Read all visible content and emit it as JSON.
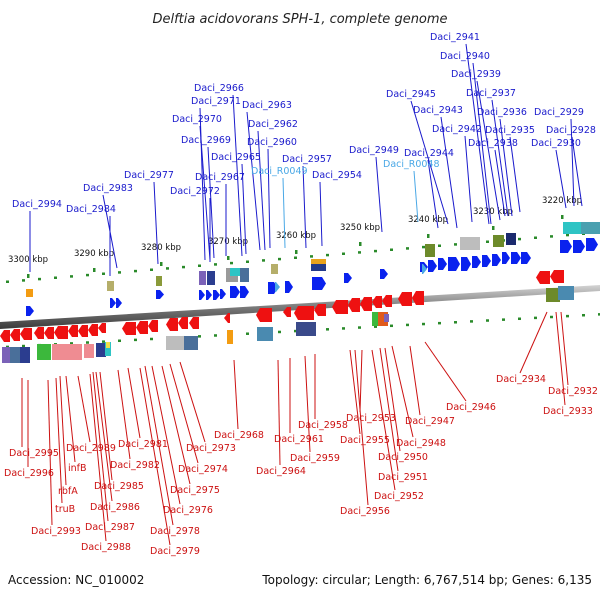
{
  "title": "Delftia acidovorans SPH-1, complete genome",
  "footer": {
    "accession": "Accession: NC_010002",
    "summary": "Topology: circular; Length: 6,767,514 bp; Genes: 6,135"
  },
  "colors": {
    "forward_label": "#1a1acc",
    "rna_label": "#4aa8e6",
    "reverse_label": "#cc1111",
    "forward_arrow": "#0a22ee",
    "reverse_arrow": "#ee1111",
    "backbone": "#7a7a7a",
    "tick": "#2a8a2a"
  },
  "scale_ticks": [
    "3300 kbp",
    "3290 kbp",
    "3280 kbp",
    "3270 kbp",
    "3260 kbp",
    "3250 kbp",
    "3240 kbp",
    "3230 kbp",
    "3220 kbp"
  ],
  "forward_genes": [
    "Daci_2994",
    "Daci_2984",
    "Daci_2983",
    "Daci_2977",
    "Daci_2972",
    "Daci_2971",
    "Daci_2970",
    "Daci_2969",
    "Daci_2967",
    "Daci_2966",
    "Daci_2965",
    "Daci_2963",
    "Daci_2962",
    "Daci_2960",
    "Daci_R0049",
    "Daci_2957",
    "Daci_2954",
    "Daci_2949",
    "Daci_R0048",
    "Daci_2945",
    "Daci_2944",
    "Daci_2943",
    "Daci_2942",
    "Daci_2941",
    "Daci_2940",
    "Daci_2939",
    "Daci_2938",
    "Daci_2937",
    "Daci_2936",
    "Daci_2935",
    "Daci_2930",
    "Daci_2929",
    "Daci_2928"
  ],
  "reverse_genes": [
    "Daci_2995",
    "Daci_2996",
    "Daci_2993",
    "truB",
    "rbfA",
    "infB",
    "Daci_2989",
    "Daci_2988",
    "Daci_2987",
    "Daci_2986",
    "Daci_2985",
    "Daci_2982",
    "Daci_2981",
    "Daci_2979",
    "Daci_2978",
    "Daci_2976",
    "Daci_2975",
    "Daci_2974",
    "Daci_2973",
    "Daci_2968",
    "Daci_2964",
    "Daci_2961",
    "Daci_2959",
    "Daci_2958",
    "Daci_2956",
    "Daci_2955",
    "Daci_2953",
    "Daci_2952",
    "Daci_2951",
    "Daci_2950",
    "Daci_2948",
    "Daci_2947",
    "Daci_2946",
    "Daci_2934",
    "Daci_2933",
    "Daci_2932"
  ]
}
